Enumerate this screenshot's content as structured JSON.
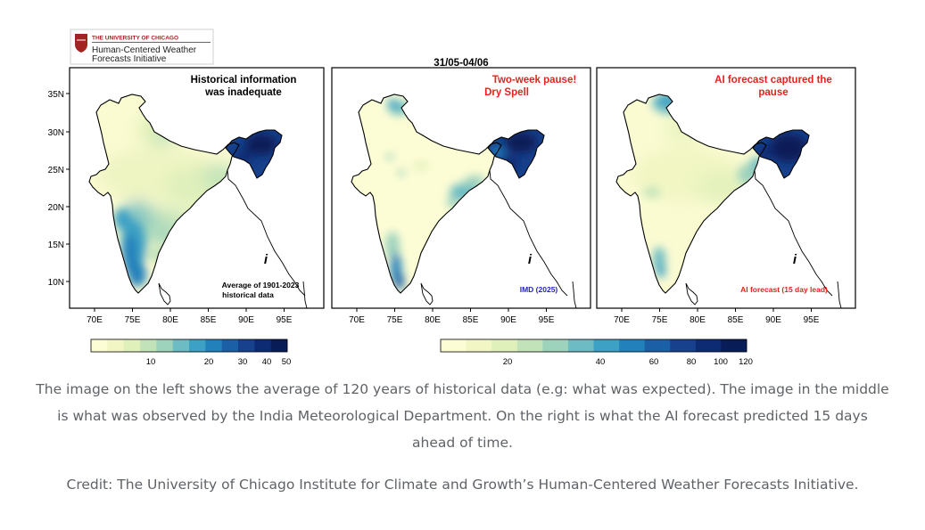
{
  "logo": {
    "university": "THE UNIVERSITY OF CHICAGO",
    "initiative_line1": "Human-Centered Weather",
    "initiative_line2": "Forecasts Initiative"
  },
  "date_range": "31/05-04/06",
  "axis": {
    "lat_ticks": [
      "35N",
      "30N",
      "25N",
      "20N",
      "15N",
      "10N"
    ],
    "lon_ticks": [
      "70E",
      "75E",
      "80E",
      "85E",
      "90E",
      "95E"
    ]
  },
  "panels": [
    {
      "title_line1": "Historical information",
      "title_line2": "was inadequate",
      "title_color": "#000000",
      "note_line1": "Average of 1901-2023",
      "note_line2": "historical data",
      "note_color": "#000000"
    },
    {
      "title_line1": "Two-week pause!",
      "title_line2": "Dry Spell",
      "title_color": "#e8211c",
      "note_line1": "IMD (2025)",
      "note_line2": "",
      "note_color": "#2222cc"
    },
    {
      "title_line1": "AI forecast captured the",
      "title_line2": "pause",
      "title_color": "#e8211c",
      "note_line1": "AI forecast (15 day lead)",
      "note_line2": "",
      "note_color": "#e8211c"
    }
  ],
  "colorbars": [
    {
      "ticks": [
        "10",
        "20",
        "30",
        "40",
        "50"
      ]
    },
    {
      "ticks": [
        "20",
        "40",
        "60",
        "80",
        "100",
        "120"
      ]
    }
  ],
  "colors": {
    "scale": [
      "#fdfdd5",
      "#f2f6c4",
      "#dff0bb",
      "#c2e3ba",
      "#9dd2bd",
      "#6dbcc3",
      "#3da1c5",
      "#2281bb",
      "#1b5fa6",
      "#17418c",
      "#0d2b73",
      "#081d58"
    ],
    "map_text_red": "#e8211c",
    "logo_red": "#a32323"
  },
  "caption": "The image on the left shows the average of 120 years of historical data (e.g: what was expected). The image in the middle is what was observed by the India Meteorological Department. On the right is what the AI forecast predicted 15 days ahead of time.",
  "credit": "Credit: The University of Chicago Institute for Climate and Growth’s Human-Centered Weather Forecasts Initiative."
}
